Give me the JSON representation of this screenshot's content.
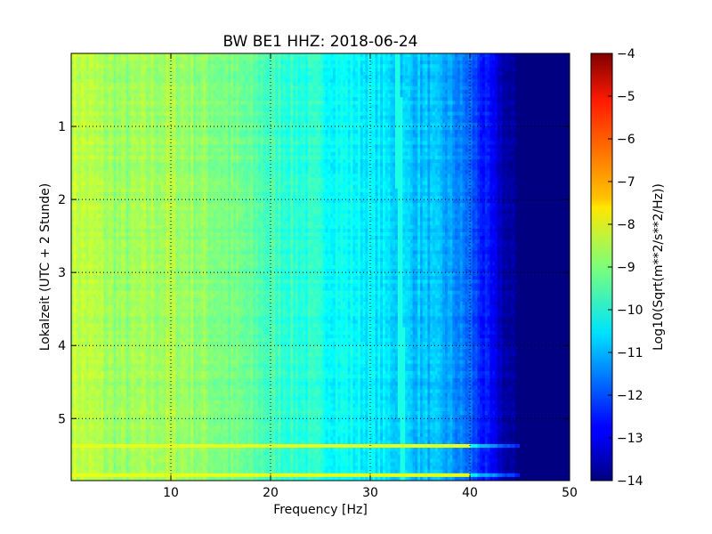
{
  "chart_data": {
    "type": "heatmap",
    "title": "BW BE1 HHZ: 2018-06-24",
    "xlabel": "Frequency [Hz]",
    "ylabel": "Lokalzeit (UTC + 2 Stunde)",
    "xlim": [
      0,
      50
    ],
    "ylim": [
      5.85,
      0.0
    ],
    "x_ticks": [
      10,
      20,
      30,
      40,
      50
    ],
    "y_ticks": [
      1,
      2,
      3,
      4,
      5
    ],
    "grid": true,
    "colorbar": {
      "label": "Log10(Sqrt(m**2/s**2/Hz))",
      "colormap": "jet",
      "range": [
        -14,
        -4
      ],
      "ticks": [
        -4,
        -5,
        -6,
        -7,
        -8,
        -9,
        -10,
        -11,
        -12,
        -13,
        -14
      ]
    },
    "data_description": {
      "frequency_profile_hz": [
        0,
        5,
        10,
        15,
        20,
        25,
        30,
        33,
        36,
        38,
        40,
        41.5,
        43,
        44,
        45,
        50
      ],
      "frequency_profile_log10": [
        -8.3,
        -8.8,
        -8.6,
        -9.0,
        -9.6,
        -10.0,
        -10.4,
        -10.7,
        -10.9,
        -11.2,
        -11.8,
        -12.6,
        -13.3,
        -13.8,
        -14.0,
        -14.0
      ],
      "spectral_line_hz": 33,
      "spectral_line_log10": -10.0,
      "broadband_events_hours": [
        5.37,
        5.78
      ],
      "broadband_event_log10": -8.0
    },
    "colors": {
      "grid": "#000000",
      "axes": "#000000",
      "background": "#ffffff"
    }
  }
}
